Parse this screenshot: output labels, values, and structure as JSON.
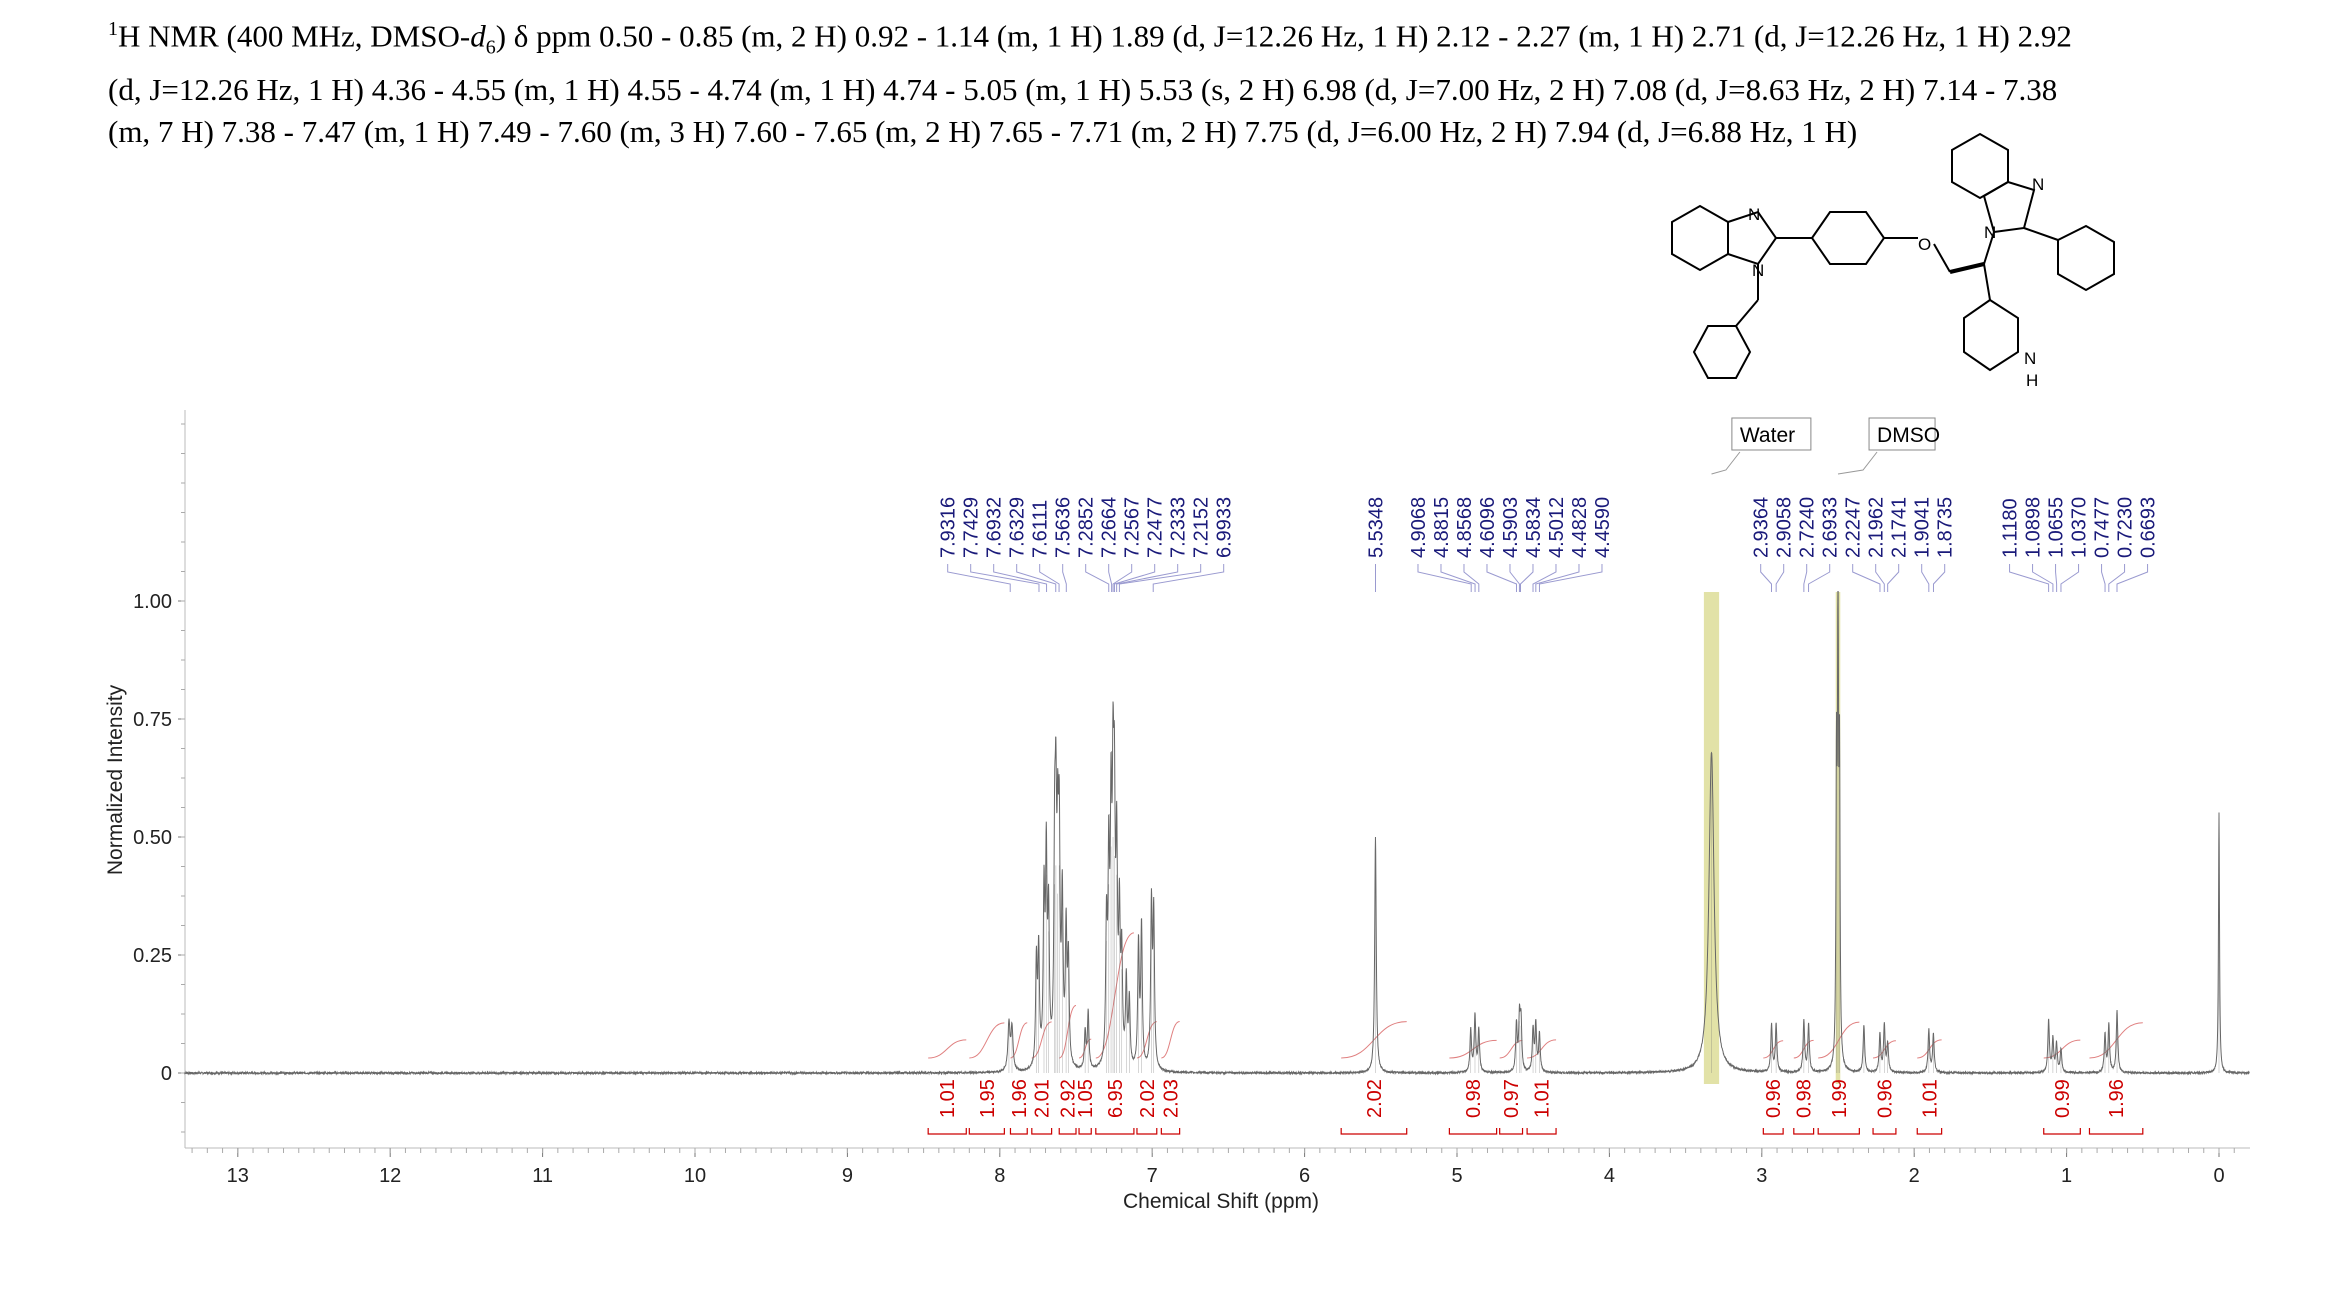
{
  "header": {
    "line1_pre": "H NMR (400 MHz, DMSO-",
    "nucleus_mass": "1",
    "solvent_d": "d",
    "solvent_sub": "6",
    "line1_post": ") δ ppm 0.50 - 0.85 (m, 2 H) 0.92 - 1.14 (m, 1 H) 1.89 (d, J=12.26 Hz, 1 H) 2.12 - 2.27 (m, 1 H) 2.71 (d, J=12.26 Hz, 1 H) 2.92",
    "line2": "(d, J=12.26 Hz, 1 H) 4.36 - 4.55 (m, 1 H) 4.55 - 4.74 (m, 1 H) 4.74 - 5.05 (m, 1 H) 5.53 (s, 2 H) 6.98 (d,  J=7.00 Hz, 2 H) 7.08 (d, J=8.63 Hz, 2 H) 7.14 - 7.38",
    "line3": "(m, 7 H) 7.38 - 7.47 (m, 1 H) 7.49 - 7.60 (m, 3 H) 7.60 - 7.65 (m, 2 H) 7.65 - 7.71 (m, 2 H) 7.75 (d,  J=6.00 Hz, 2 H) 7.94 (d, J=6.88 Hz, 1 H)"
  },
  "molecule": {
    "atoms": [
      "N",
      "N",
      "O",
      "N",
      "N",
      "N",
      "H"
    ]
  },
  "chart_data": {
    "type": "line",
    "title": "",
    "xlabel": "Chemical Shift (ppm)",
    "ylabel": "Normalized Intensity",
    "xlim": [
      13.4,
      -0.2
    ],
    "ylim": [
      -0.15,
      1.4
    ],
    "x_ticks": [
      "13",
      "12",
      "11",
      "10",
      "9",
      "8",
      "7",
      "6",
      "5",
      "4",
      "3",
      "2",
      "1",
      "0"
    ],
    "y_ticks": [
      "0",
      "0.25",
      "0.50",
      "0.75",
      "1.00"
    ],
    "solvent_labels": [
      {
        "name": "Water",
        "ppm": 3.33,
        "band": [
          3.28,
          3.38
        ],
        "label_ppm": 3.17
      },
      {
        "name": "DMSO",
        "ppm": 2.5,
        "band": [
          2.485,
          2.515
        ],
        "label_ppm": 2.27
      }
    ],
    "peak_labels": [
      {
        "label": "7.9316",
        "ppm": 7.9316
      },
      {
        "label": "7.7429",
        "ppm": 7.7429
      },
      {
        "label": "7.6932",
        "ppm": 7.6932
      },
      {
        "label": "7.6329",
        "ppm": 7.6329
      },
      {
        "label": "7.6111",
        "ppm": 7.6111
      },
      {
        "label": "7.5636",
        "ppm": 7.5636
      },
      {
        "label": "7.2852",
        "ppm": 7.2852
      },
      {
        "label": "7.2664",
        "ppm": 7.2664
      },
      {
        "label": "7.2567",
        "ppm": 7.2567
      },
      {
        "label": "7.2477",
        "ppm": 7.2477
      },
      {
        "label": "7.2333",
        "ppm": 7.2333
      },
      {
        "label": "7.2152",
        "ppm": 7.2152
      },
      {
        "label": "6.9933",
        "ppm": 6.9933
      },
      {
        "label": "5.5348",
        "ppm": 5.5348
      },
      {
        "label": "4.9068",
        "ppm": 4.9068
      },
      {
        "label": "4.8815",
        "ppm": 4.8815
      },
      {
        "label": "4.8568",
        "ppm": 4.8568
      },
      {
        "label": "4.6096",
        "ppm": 4.6096
      },
      {
        "label": "4.5903",
        "ppm": 4.5903
      },
      {
        "label": "4.5834",
        "ppm": 4.5834
      },
      {
        "label": "4.5012",
        "ppm": 4.5012
      },
      {
        "label": "4.4828",
        "ppm": 4.4828
      },
      {
        "label": "4.4590",
        "ppm": 4.459
      },
      {
        "label": "2.9364",
        "ppm": 2.9364
      },
      {
        "label": "2.9058",
        "ppm": 2.9058
      },
      {
        "label": "2.7240",
        "ppm": 2.724
      },
      {
        "label": "2.6933",
        "ppm": 2.6933
      },
      {
        "label": "2.2247",
        "ppm": 2.2247
      },
      {
        "label": "2.1962",
        "ppm": 2.1962
      },
      {
        "label": "2.1741",
        "ppm": 2.1741
      },
      {
        "label": "1.9041",
        "ppm": 1.9041
      },
      {
        "label": "1.8735",
        "ppm": 1.8735
      },
      {
        "label": "1.1180",
        "ppm": 1.118
      },
      {
        "label": "1.0898",
        "ppm": 1.0898
      },
      {
        "label": "1.0655",
        "ppm": 1.0655
      },
      {
        "label": "1.0370",
        "ppm": 1.037
      },
      {
        "label": "0.7477",
        "ppm": 0.7477
      },
      {
        "label": "0.7230",
        "ppm": 0.723
      },
      {
        "label": "0.6693",
        "ppm": 0.6693
      }
    ],
    "integrals": [
      {
        "label": "1.01",
        "from": 8.47,
        "to": 8.22
      },
      {
        "label": "1.95",
        "from": 8.2,
        "to": 7.97
      },
      {
        "label": "1.96",
        "from": 7.93,
        "to": 7.82
      },
      {
        "label": "2.01",
        "from": 7.79,
        "to": 7.66
      },
      {
        "label": "2.92",
        "from": 7.61,
        "to": 7.5
      },
      {
        "label": "1.05",
        "from": 7.48,
        "to": 7.4
      },
      {
        "label": "6.95",
        "from": 7.37,
        "to": 7.12
      },
      {
        "label": "2.02",
        "from": 7.1,
        "to": 6.97
      },
      {
        "label": "2.03",
        "from": 6.94,
        "to": 6.82
      },
      {
        "label": "2.02",
        "from": 5.76,
        "to": 5.33
      },
      {
        "label": "0.98",
        "from": 5.05,
        "to": 4.74
      },
      {
        "label": "0.97",
        "from": 4.72,
        "to": 4.57
      },
      {
        "label": "1.01",
        "from": 4.54,
        "to": 4.35
      },
      {
        "label": "0.96",
        "from": 2.99,
        "to": 2.86
      },
      {
        "label": "0.98",
        "from": 2.79,
        "to": 2.66
      },
      {
        "label": "1.99",
        "from": 2.63,
        "to": 2.36
      },
      {
        "label": "0.96",
        "from": 2.27,
        "to": 2.12
      },
      {
        "label": "1.01",
        "from": 1.98,
        "to": 1.82
      },
      {
        "label": "0.99",
        "from": 1.15,
        "to": 0.91
      },
      {
        "label": "1.96",
        "from": 0.85,
        "to": 0.5
      }
    ],
    "peaks": [
      {
        "ppm": 7.94,
        "h": 0.1,
        "w": 0.008
      },
      {
        "ppm": 7.92,
        "h": 0.09,
        "w": 0.008
      },
      {
        "ppm": 7.76,
        "h": 0.22,
        "w": 0.006
      },
      {
        "ppm": 7.745,
        "h": 0.24,
        "w": 0.006
      },
      {
        "ppm": 7.71,
        "h": 0.35,
        "w": 0.006
      },
      {
        "ppm": 7.695,
        "h": 0.42,
        "w": 0.006
      },
      {
        "ppm": 7.68,
        "h": 0.3,
        "w": 0.006
      },
      {
        "ppm": 7.64,
        "h": 0.4,
        "w": 0.006
      },
      {
        "ppm": 7.632,
        "h": 0.44,
        "w": 0.006
      },
      {
        "ppm": 7.62,
        "h": 0.38,
        "w": 0.006
      },
      {
        "ppm": 7.61,
        "h": 0.44,
        "w": 0.006
      },
      {
        "ppm": 7.59,
        "h": 0.34,
        "w": 0.006
      },
      {
        "ppm": 7.565,
        "h": 0.28,
        "w": 0.006
      },
      {
        "ppm": 7.55,
        "h": 0.22,
        "w": 0.006
      },
      {
        "ppm": 7.44,
        "h": 0.08,
        "w": 0.006
      },
      {
        "ppm": 7.42,
        "h": 0.12,
        "w": 0.006
      },
      {
        "ppm": 7.3,
        "h": 0.28,
        "w": 0.006
      },
      {
        "ppm": 7.285,
        "h": 0.4,
        "w": 0.006
      },
      {
        "ppm": 7.27,
        "h": 0.48,
        "w": 0.006
      },
      {
        "ppm": 7.257,
        "h": 0.5,
        "w": 0.006
      },
      {
        "ppm": 7.248,
        "h": 0.46,
        "w": 0.006
      },
      {
        "ppm": 7.233,
        "h": 0.42,
        "w": 0.006
      },
      {
        "ppm": 7.215,
        "h": 0.3,
        "w": 0.006
      },
      {
        "ppm": 7.2,
        "h": 0.22,
        "w": 0.006
      },
      {
        "ppm": 7.17,
        "h": 0.18,
        "w": 0.006
      },
      {
        "ppm": 7.15,
        "h": 0.14,
        "w": 0.006
      },
      {
        "ppm": 7.09,
        "h": 0.26,
        "w": 0.006
      },
      {
        "ppm": 7.07,
        "h": 0.3,
        "w": 0.006
      },
      {
        "ppm": 7.005,
        "h": 0.34,
        "w": 0.006
      },
      {
        "ppm": 6.99,
        "h": 0.32,
        "w": 0.006
      },
      {
        "ppm": 5.535,
        "h": 0.5,
        "w": 0.006
      },
      {
        "ppm": 4.91,
        "h": 0.09,
        "w": 0.006
      },
      {
        "ppm": 4.882,
        "h": 0.12,
        "w": 0.006
      },
      {
        "ppm": 4.857,
        "h": 0.09,
        "w": 0.006
      },
      {
        "ppm": 4.61,
        "h": 0.1,
        "w": 0.006
      },
      {
        "ppm": 4.59,
        "h": 0.11,
        "w": 0.006
      },
      {
        "ppm": 4.58,
        "h": 0.1,
        "w": 0.006
      },
      {
        "ppm": 4.501,
        "h": 0.09,
        "w": 0.006
      },
      {
        "ppm": 4.483,
        "h": 0.1,
        "w": 0.006
      },
      {
        "ppm": 4.459,
        "h": 0.08,
        "w": 0.006
      },
      {
        "ppm": 3.33,
        "h": 0.68,
        "w": 0.02
      },
      {
        "ppm": 2.936,
        "h": 0.1,
        "w": 0.006
      },
      {
        "ppm": 2.906,
        "h": 0.1,
        "w": 0.006
      },
      {
        "ppm": 2.724,
        "h": 0.11,
        "w": 0.006
      },
      {
        "ppm": 2.693,
        "h": 0.1,
        "w": 0.006
      },
      {
        "ppm": 2.5,
        "h": 1.0,
        "w": 0.004
      },
      {
        "ppm": 2.51,
        "h": 0.6,
        "w": 0.004
      },
      {
        "ppm": 2.49,
        "h": 0.6,
        "w": 0.004
      },
      {
        "ppm": 2.33,
        "h": 0.1,
        "w": 0.006
      },
      {
        "ppm": 2.225,
        "h": 0.08,
        "w": 0.006
      },
      {
        "ppm": 2.196,
        "h": 0.1,
        "w": 0.006
      },
      {
        "ppm": 2.174,
        "h": 0.06,
        "w": 0.006
      },
      {
        "ppm": 1.904,
        "h": 0.09,
        "w": 0.006
      },
      {
        "ppm": 1.874,
        "h": 0.08,
        "w": 0.006
      },
      {
        "ppm": 1.118,
        "h": 0.11,
        "w": 0.006
      },
      {
        "ppm": 1.09,
        "h": 0.07,
        "w": 0.006
      },
      {
        "ppm": 1.066,
        "h": 0.06,
        "w": 0.006
      },
      {
        "ppm": 1.037,
        "h": 0.05,
        "w": 0.006
      },
      {
        "ppm": 0.748,
        "h": 0.08,
        "w": 0.006
      },
      {
        "ppm": 0.723,
        "h": 0.1,
        "w": 0.006
      },
      {
        "ppm": 0.669,
        "h": 0.13,
        "w": 0.006
      },
      {
        "ppm": 0.0,
        "h": 0.55,
        "w": 0.004
      }
    ]
  }
}
